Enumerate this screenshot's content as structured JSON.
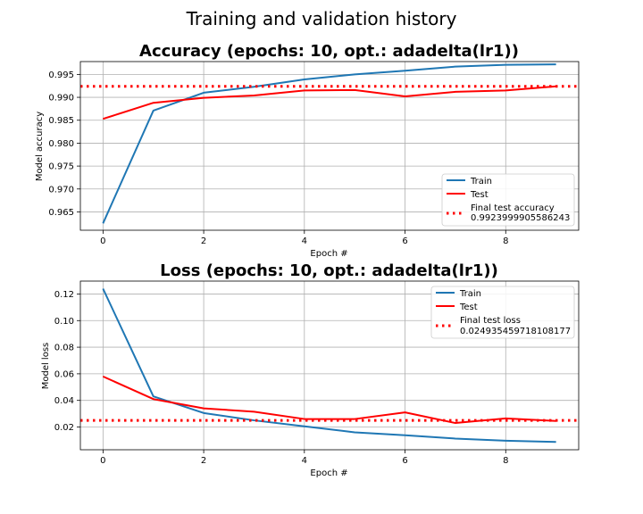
{
  "suptitle": "Training and validation history",
  "colors": {
    "train": "#1f77b4",
    "test": "#ff0000",
    "final": "#ff0000",
    "grid": "#b0b0b0"
  },
  "chart_data": [
    {
      "type": "line",
      "title": "Accuracy (epochs: 10, opt.: adadelta(lr1))",
      "xlabel": "Epoch #",
      "ylabel": "Model accuracy",
      "xlim": [
        -0.45,
        9.45
      ],
      "ylim": [
        0.961,
        0.9978
      ],
      "xticks": [
        0,
        2,
        4,
        6,
        8
      ],
      "xtick_labels": [
        "0",
        "2",
        "4",
        "6",
        "8"
      ],
      "yticks": [
        0.965,
        0.97,
        0.975,
        0.98,
        0.985,
        0.99,
        0.995
      ],
      "ytick_labels": [
        "0.965",
        "0.970",
        "0.975",
        "0.980",
        "0.985",
        "0.990",
        "0.995"
      ],
      "grid": true,
      "legend_position": "lower-right",
      "x": [
        0,
        1,
        2,
        3,
        4,
        5,
        6,
        7,
        8,
        9
      ],
      "series": [
        {
          "name": "Train",
          "style": "solid",
          "color": "#1f77b4",
          "values": [
            0.9625,
            0.9871,
            0.991,
            0.9923,
            0.9939,
            0.995,
            0.9958,
            0.9967,
            0.9971,
            0.9972
          ]
        },
        {
          "name": "Test",
          "style": "solid",
          "color": "#ff0000",
          "values": [
            0.9853,
            0.9888,
            0.9899,
            0.9904,
            0.9915,
            0.9916,
            0.9902,
            0.9912,
            0.9915,
            0.9924
          ]
        }
      ],
      "hline": {
        "name": "Final test accuracy",
        "value": 0.9923999905586243,
        "value_label": "0.9923999905586243",
        "style": "dotted",
        "color": "#ff0000"
      }
    },
    {
      "type": "line",
      "title": "Loss (epochs: 10, opt.: adadelta(lr1))",
      "xlabel": "Epoch #",
      "ylabel": "Model loss",
      "xlim": [
        -0.45,
        9.45
      ],
      "ylim": [
        0.0029,
        0.1297
      ],
      "xticks": [
        0,
        2,
        4,
        6,
        8
      ],
      "xtick_labels": [
        "0",
        "2",
        "4",
        "6",
        "8"
      ],
      "yticks": [
        0.02,
        0.04,
        0.06,
        0.08,
        0.1,
        0.12
      ],
      "ytick_labels": [
        "0.02",
        "0.04",
        "0.06",
        "0.08",
        "0.10",
        "0.12"
      ],
      "grid": true,
      "legend_position": "upper-right",
      "x": [
        0,
        1,
        2,
        3,
        4,
        5,
        6,
        7,
        8,
        9
      ],
      "series": [
        {
          "name": "Train",
          "style": "solid",
          "color": "#1f77b4",
          "values": [
            0.124,
            0.043,
            0.0305,
            0.025,
            0.0205,
            0.016,
            0.0138,
            0.0113,
            0.0097,
            0.0088
          ]
        },
        {
          "name": "Test",
          "style": "solid",
          "color": "#ff0000",
          "values": [
            0.058,
            0.041,
            0.034,
            0.0315,
            0.026,
            0.026,
            0.031,
            0.023,
            0.0265,
            0.0245
          ]
        }
      ],
      "hline": {
        "name": "Final test loss",
        "value": 0.024935459718108177,
        "value_label": "0.024935459718108177",
        "style": "dotted",
        "color": "#ff0000"
      }
    }
  ]
}
